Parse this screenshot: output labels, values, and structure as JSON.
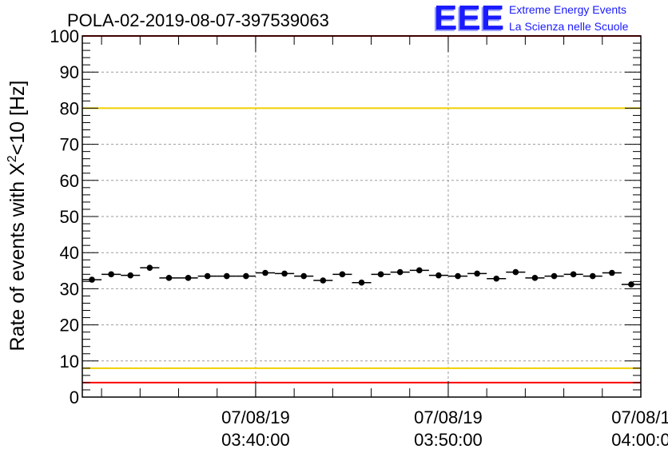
{
  "chart_data": {
    "type": "scatter",
    "title": "POLA-02-2019-08-07-397539063",
    "ylabel": "Rate of events with",
    "ylabel_math_base": "X",
    "ylabel_math_sup": "2",
    "ylabel_rest": "<10 [Hz]",
    "ylim": [
      0,
      100
    ],
    "xlim": [
      "03:31:00",
      "04:00:00"
    ],
    "y_ticks": [
      0,
      10,
      20,
      30,
      40,
      50,
      60,
      70,
      80,
      90,
      100
    ],
    "x_ticks": [
      {
        "time": "03:40:00",
        "date_label": "07/08/19",
        "time_label": "03:40:00"
      },
      {
        "time": "03:50:00",
        "date_label": "07/08/19",
        "time_label": "03:50:00"
      },
      {
        "time": "04:00:00",
        "date_label": "07/08/1",
        "time_label": "04:00:0"
      }
    ],
    "grid": true,
    "reference_lines": [
      {
        "y": 100,
        "color": "#ff0000"
      },
      {
        "y": 80,
        "color": "#f0d000"
      },
      {
        "y": 8,
        "color": "#f0d000"
      },
      {
        "y": 4,
        "color": "#ff0000"
      }
    ],
    "series": [
      {
        "marker_color": "#000000",
        "points": [
          {
            "x": "03:31:30",
            "y": 32.5
          },
          {
            "x": "03:32:30",
            "y": 34.0
          },
          {
            "x": "03:33:30",
            "y": 33.7
          },
          {
            "x": "03:34:30",
            "y": 35.8
          },
          {
            "x": "03:35:30",
            "y": 33.0
          },
          {
            "x": "03:36:30",
            "y": 33.0
          },
          {
            "x": "03:37:30",
            "y": 33.5
          },
          {
            "x": "03:38:30",
            "y": 33.5
          },
          {
            "x": "03:39:30",
            "y": 33.5
          },
          {
            "x": "03:40:30",
            "y": 34.4
          },
          {
            "x": "03:41:30",
            "y": 34.2
          },
          {
            "x": "03:42:30",
            "y": 33.5
          },
          {
            "x": "03:43:30",
            "y": 32.3
          },
          {
            "x": "03:44:30",
            "y": 34.0
          },
          {
            "x": "03:45:30",
            "y": 31.7
          },
          {
            "x": "03:46:30",
            "y": 34.0
          },
          {
            "x": "03:47:30",
            "y": 34.6
          },
          {
            "x": "03:48:30",
            "y": 35.1
          },
          {
            "x": "03:49:30",
            "y": 33.7
          },
          {
            "x": "03:50:30",
            "y": 33.5
          },
          {
            "x": "03:51:30",
            "y": 34.2
          },
          {
            "x": "03:52:30",
            "y": 32.8
          },
          {
            "x": "03:53:30",
            "y": 34.6
          },
          {
            "x": "03:54:30",
            "y": 33.0
          },
          {
            "x": "03:55:30",
            "y": 33.5
          },
          {
            "x": "03:56:30",
            "y": 34.0
          },
          {
            "x": "03:57:30",
            "y": 33.5
          },
          {
            "x": "03:58:30",
            "y": 34.4
          },
          {
            "x": "03:59:30",
            "y": 31.2
          }
        ]
      }
    ]
  },
  "logo": {
    "mark": "EEE",
    "line1": "Extreme Energy Events",
    "line2": "La Scienza nelle Scuole",
    "color": "#1a1aff"
  }
}
